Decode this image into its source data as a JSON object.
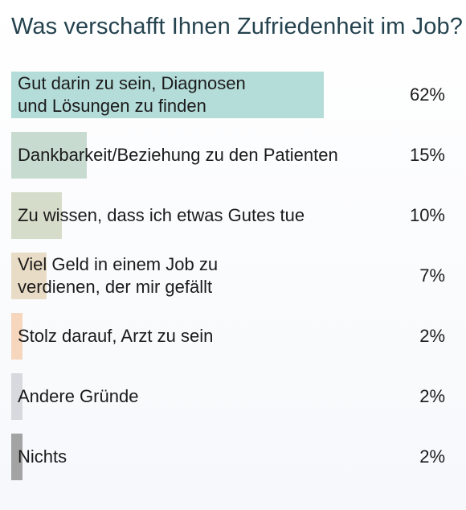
{
  "chart_data": {
    "type": "bar",
    "title": "Was verschafft Ihnen Zufriedenheit im Job?",
    "categories": [
      "Gut darin zu sein, Diagnosen\nund Lösungen zu finden",
      "Dankbarkeit/Beziehung zu den Patienten",
      "Zu wissen, dass ich etwas Gutes tue",
      "Viel Geld in einem Job zu\nverdienen, der mir gefällt",
      "Stolz darauf, Arzt zu sein",
      "Andere Gründe",
      "Nichts"
    ],
    "values": [
      62,
      15,
      10,
      7,
      2,
      2,
      2
    ],
    "value_labels": [
      "62%",
      "15%",
      "10%",
      "7%",
      "2%",
      "2%",
      "2%"
    ],
    "colors": [
      "#b4dcd9",
      "#c7dbd0",
      "#d6dcca",
      "#e9dcc6",
      "#f6d6bd",
      "#d7d9de",
      "#a3a3a3"
    ],
    "xlim": [
      0,
      100
    ],
    "orientation": "horizontal",
    "grid": false,
    "legend": "none"
  }
}
